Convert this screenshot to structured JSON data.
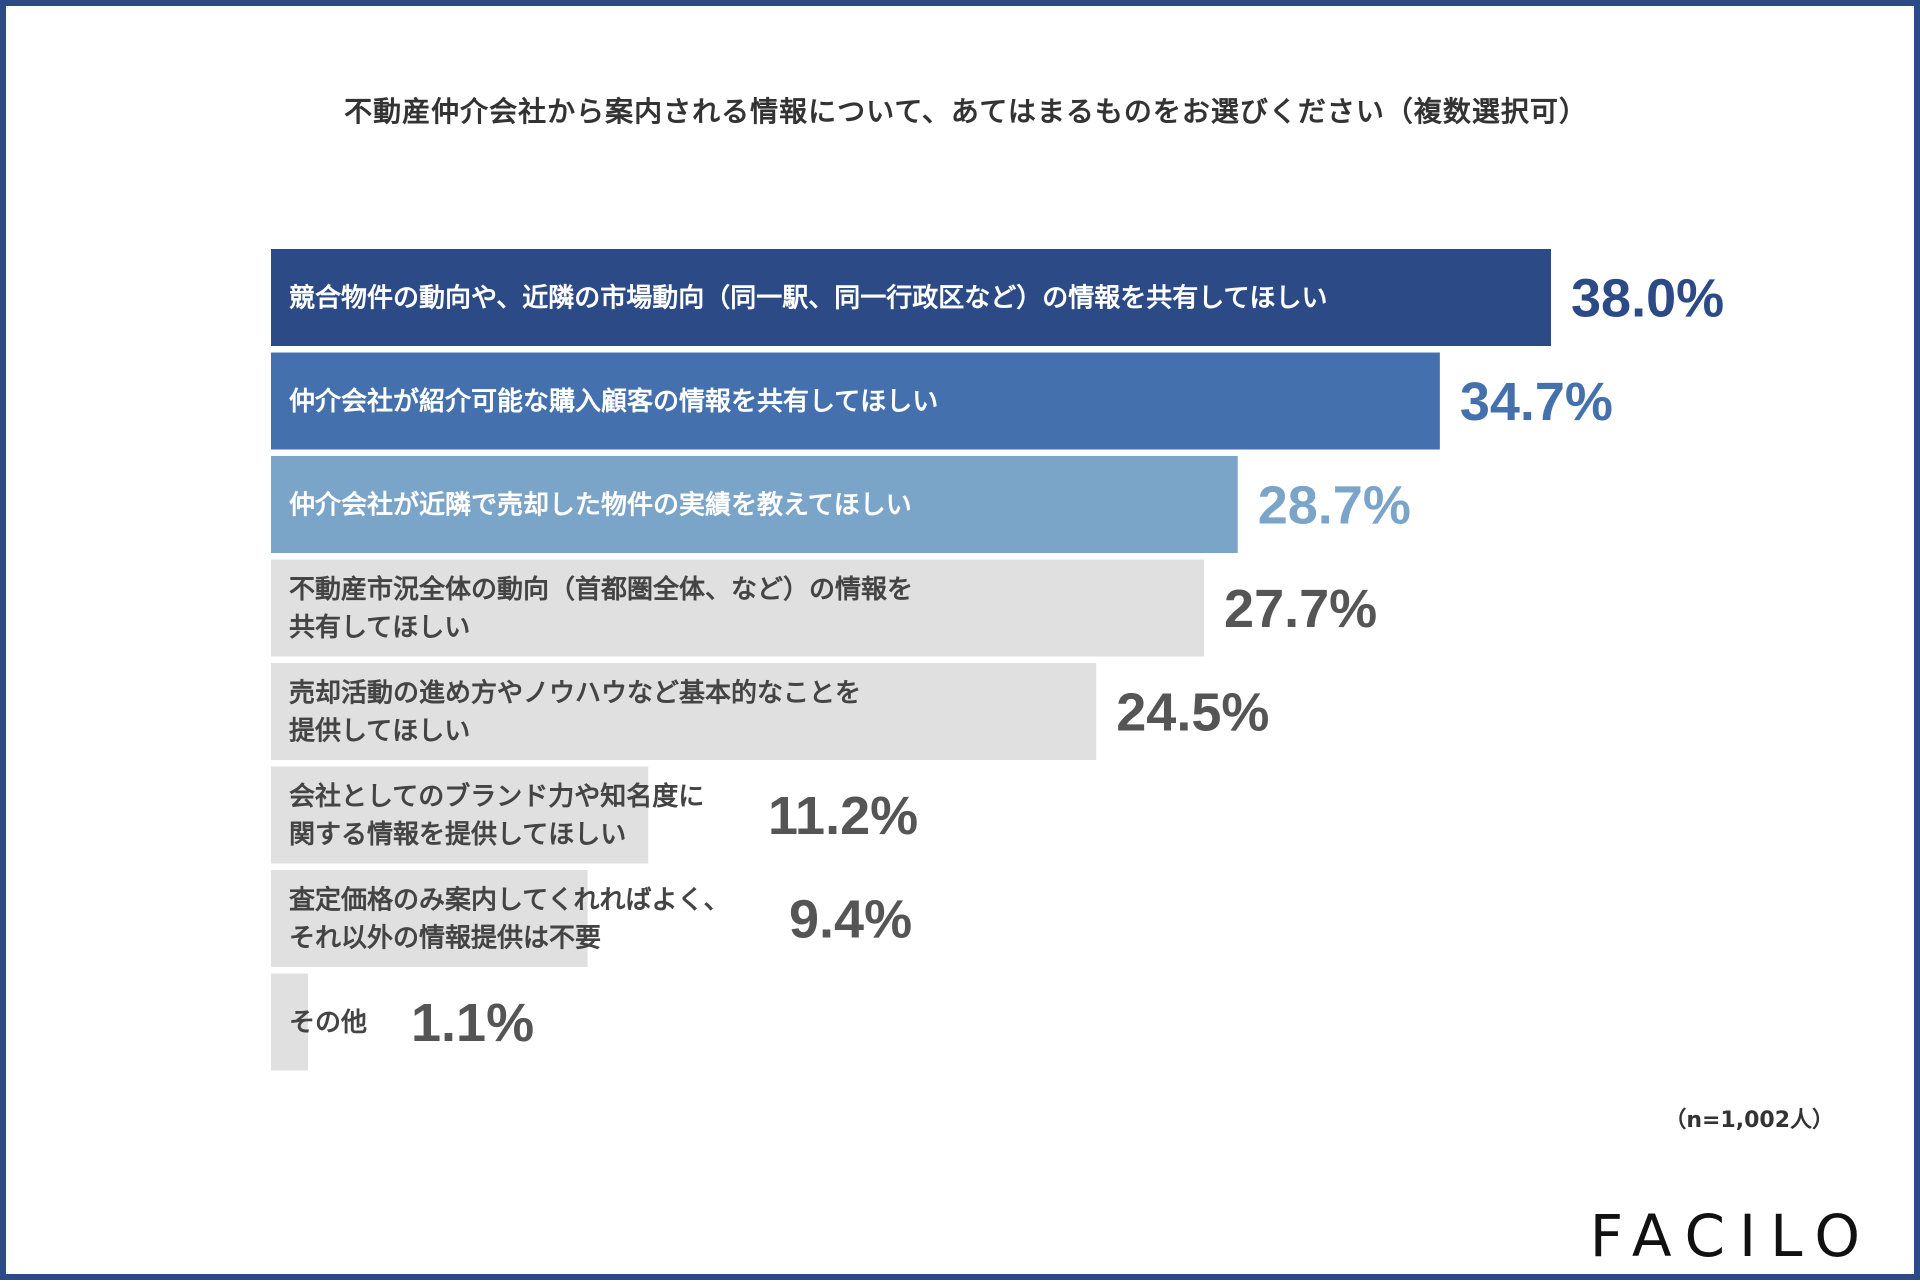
{
  "brand": {
    "name": "FACILO"
  },
  "sample_note": "（n=1,002人）",
  "colors": {
    "frame": "#2c4a86",
    "rank1": "#2c4a86",
    "rank2": "#4470ad",
    "rank3": "#7ba4c9",
    "other": "#e0e0e0",
    "label_light": "#ffffff",
    "label_dark": "#444444",
    "value_other": "#555555"
  },
  "chart_data": {
    "type": "bar",
    "orientation": "horizontal",
    "title": "不動産仲介会社から案内される情報について、あてはまるものをお選びください（複数選択可）",
    "xlim": [
      0,
      40
    ],
    "grid": false,
    "unit": "%",
    "categories": [
      [
        "競合物件の動向や、近隣の市場動向（同一駅、同一行政区など）の情報を共有してほしい"
      ],
      [
        "仲介会社が紹介可能な購入顧客の情報を共有してほしい"
      ],
      [
        "仲介会社が近隣で売却した物件の実績を教えてほしい"
      ],
      [
        "不動産市況全体の動向（首都圏全体、など）の情報を",
        "共有してほしい"
      ],
      [
        "売却活動の進め方やノウハウなど基本的なことを",
        "提供してほしい"
      ],
      [
        "会社としてのブランド力や知名度に",
        "関する情報を提供してほしい"
      ],
      [
        "査定価格のみ案内してくれればよく、",
        "それ以外の情報提供は不要"
      ],
      [
        "その他"
      ]
    ],
    "values": [
      38.0,
      34.7,
      28.7,
      27.7,
      24.5,
      11.2,
      9.4,
      1.1
    ],
    "value_labels": [
      "38.0%",
      "34.7%",
      "28.7%",
      "27.7%",
      "24.5%",
      "11.2%",
      "9.4%",
      "1.1%"
    ]
  }
}
